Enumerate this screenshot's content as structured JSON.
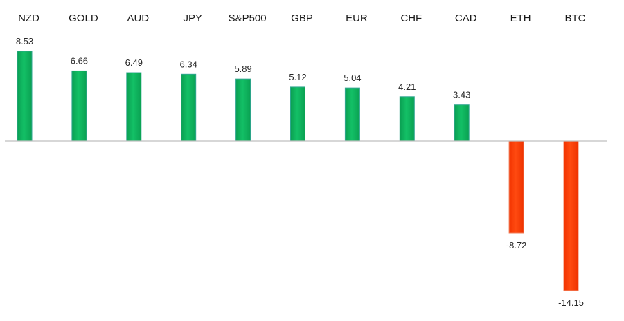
{
  "chart_data": {
    "type": "bar",
    "categories": [
      "NZD",
      "GOLD",
      "AUD",
      "JPY",
      "S&P500",
      "GBP",
      "EUR",
      "CHF",
      "CAD",
      "ETH",
      "BTC"
    ],
    "values": [
      8.53,
      6.66,
      6.49,
      6.34,
      5.89,
      5.12,
      5.04,
      4.21,
      3.43,
      -8.72,
      -14.15
    ],
    "value_labels": [
      "8.53",
      "6.66",
      "6.49",
      "6.34",
      "5.89",
      "5.12",
      "5.04",
      "4.21",
      "3.43",
      "-8.72",
      "-14.15"
    ],
    "title": "",
    "xlabel": "",
    "ylabel": "",
    "ylim": [
      -15,
      9.5
    ],
    "grid": false,
    "legend": "none",
    "colors": {
      "positive": "#0eb25a",
      "positive_edge": "#2fa68f",
      "negative": "#ff3d00",
      "negative_edge": "#f07a55",
      "axis": "#bfbfbf"
    }
  }
}
